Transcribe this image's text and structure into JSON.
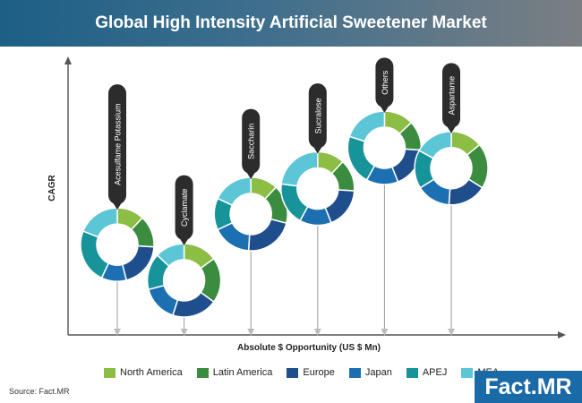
{
  "header": {
    "title": "Global High Intensity Artificial Sweetener Market"
  },
  "source": "Source: Fact.MR",
  "logo": {
    "text": "Fact.MR"
  },
  "colors": {
    "north_america": "#8cbd45",
    "latin_america": "#3b8c3f",
    "europe": "#1f4e8c",
    "japan": "#1c6fb0",
    "apej": "#17949a",
    "mea": "#5cc6d6"
  },
  "chart_data": {
    "type": "bubble-donut",
    "title": "Global High Intensity Artificial Sweetener Market",
    "xlabel": "Absolute $ Opportunity (US $ Mn)",
    "ylabel": "CAGR",
    "grid": false,
    "legend_position": "bottom",
    "segments": [
      "North America",
      "Latin America",
      "Europe",
      "Japan",
      "APEJ",
      "MEA"
    ],
    "segment_colors": [
      "#8cbd45",
      "#3b8c3f",
      "#1f4e8c",
      "#1c6fb0",
      "#17949a",
      "#5cc6d6"
    ],
    "points": [
      {
        "name": "Acesulfame Potassium",
        "x": 1,
        "y": 1.5,
        "shares": [
          0.12,
          0.14,
          0.2,
          0.11,
          0.24,
          0.19
        ]
      },
      {
        "name": "Cyclamate",
        "x": 2,
        "y": 0.8,
        "shares": [
          0.15,
          0.2,
          0.2,
          0.16,
          0.16,
          0.13
        ]
      },
      {
        "name": "Saccharin",
        "x": 3,
        "y": 2.1,
        "shares": [
          0.12,
          0.17,
          0.22,
          0.17,
          0.14,
          0.18
        ]
      },
      {
        "name": "Sucralose",
        "x": 4,
        "y": 2.6,
        "shares": [
          0.12,
          0.14,
          0.18,
          0.14,
          0.19,
          0.23
        ]
      },
      {
        "name": "Others",
        "x": 5,
        "y": 3.4,
        "shares": [
          0.13,
          0.13,
          0.18,
          0.14,
          0.22,
          0.2
        ]
      },
      {
        "name": "Aspartame",
        "x": 6,
        "y": 3.0,
        "shares": [
          0.14,
          0.2,
          0.17,
          0.15,
          0.17,
          0.17
        ]
      }
    ]
  }
}
